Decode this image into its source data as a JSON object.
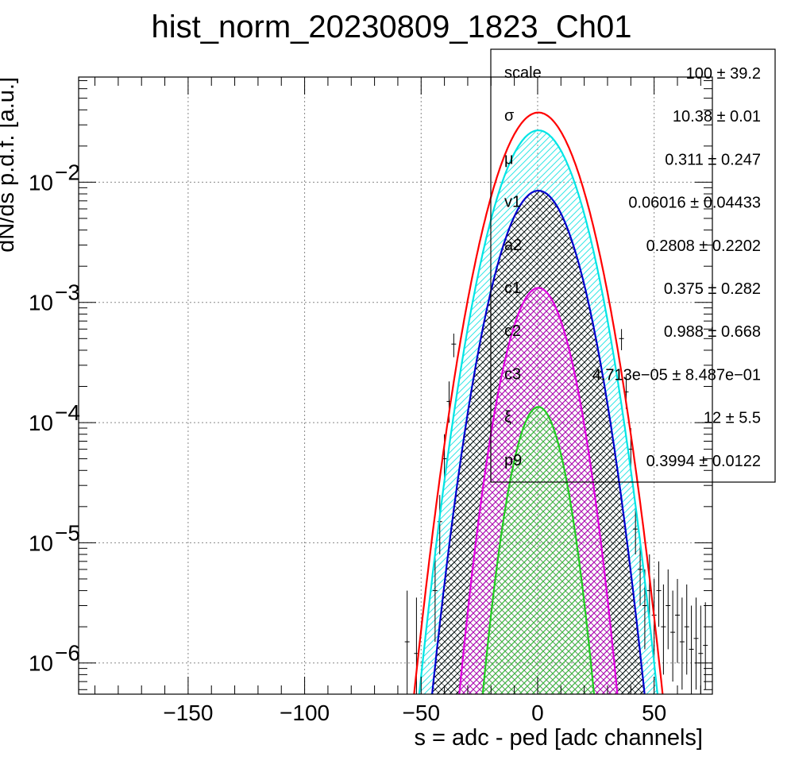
{
  "chart_data": {
    "type": "line",
    "title": "hist_norm_20230809_1823_Ch01",
    "xlabel": "s = adc - ped [adc channels]",
    "ylabel": "dN/ds p.d.f. [a.u.]",
    "xlim": [
      -197,
      75
    ],
    "ylim": [
      5.5e-07,
      0.075
    ],
    "yscale": "log",
    "grid": true,
    "xticks": [
      {
        "v": -150,
        "label": "−150"
      },
      {
        "v": -100,
        "label": "−100"
      },
      {
        "v": -50,
        "label": "−50"
      },
      {
        "v": 0,
        "label": "0"
      },
      {
        "v": 50,
        "label": "50"
      }
    ],
    "yticks": [
      {
        "v": 1e-06,
        "base": "10",
        "exp": "−6"
      },
      {
        "v": 1e-05,
        "base": "10",
        "exp": "−5"
      },
      {
        "v": 0.0001,
        "base": "10",
        "exp": "−4"
      },
      {
        "v": 0.001,
        "base": "10",
        "exp": "−3"
      },
      {
        "v": 0.01,
        "base": "10",
        "exp": "−2"
      }
    ],
    "series": [
      {
        "color": "#ff0000",
        "fill": "none",
        "peak": 0.038,
        "mu": 0.311,
        "sigma": 11.3
      },
      {
        "color": "#00e5e5",
        "fill": "#33e6e6",
        "peak": 0.027,
        "mu": 0.311,
        "sigma": 11.0
      },
      {
        "color": "#0000cc",
        "fill": "#000000",
        "peak": 0.0085,
        "mu": 0.311,
        "sigma": 10.38
      },
      {
        "color": "#e000e0",
        "fill": "#cc00cc",
        "peak": 0.00132,
        "mu": 0.311,
        "sigma": 8.6
      },
      {
        "color": "#22cc22",
        "fill": "#33dd33",
        "peak": 0.000135,
        "mu": 0.311,
        "sigma": 7.2
      }
    ],
    "data_points": [
      {
        "x": -56,
        "y": 1.5e-06,
        "lo": 4e-07,
        "hi": 4e-06
      },
      {
        "x": -52,
        "y": 1.2e-06,
        "lo": 3e-07,
        "hi": 3.5e-06
      },
      {
        "x": -44,
        "y": 4e-06,
        "lo": 1.5e-06,
        "hi": 9e-06
      },
      {
        "x": -42,
        "y": 1.5e-05,
        "lo": 8e-06,
        "hi": 2.5e-05
      },
      {
        "x": -40,
        "y": 5e-05,
        "lo": 3e-05,
        "hi": 8e-05
      },
      {
        "x": -38,
        "y": 0.00015,
        "lo": 0.0001,
        "hi": 0.00022
      },
      {
        "x": -36,
        "y": 0.00045,
        "lo": 0.00035,
        "hi": 0.00055
      },
      {
        "x": 36,
        "y": 0.0005,
        "lo": 0.0004,
        "hi": 0.0006
      },
      {
        "x": 38,
        "y": 0.00018,
        "lo": 0.00013,
        "hi": 0.00025
      },
      {
        "x": 40,
        "y": 6e-05,
        "lo": 4e-05,
        "hi": 9e-05
      },
      {
        "x": 42,
        "y": 1.3e-05,
        "lo": 8e-06,
        "hi": 2e-05
      },
      {
        "x": 44,
        "y": 6e-06,
        "lo": 3e-06,
        "hi": 1.1e-05
      },
      {
        "x": 46,
        "y": 3e-06,
        "lo": 1.3e-06,
        "hi": 6e-06
      },
      {
        "x": 48,
        "y": 4e-06,
        "lo": 2e-06,
        "hi": 8e-06
      },
      {
        "x": 50,
        "y": 2.5e-06,
        "lo": 1e-06,
        "hi": 5e-06
      },
      {
        "x": 52,
        "y": 4e-06,
        "lo": 2e-06,
        "hi": 7e-06
      },
      {
        "x": 54,
        "y": 2e-06,
        "lo": 8e-07,
        "hi": 4.5e-06
      },
      {
        "x": 56,
        "y": 3e-06,
        "lo": 1.3e-06,
        "hi": 6e-06
      },
      {
        "x": 58,
        "y": 1.8e-06,
        "lo": 7e-07,
        "hi": 4e-06
      },
      {
        "x": 60,
        "y": 2.5e-06,
        "lo": 1e-06,
        "hi": 5e-06
      },
      {
        "x": 62,
        "y": 1.5e-06,
        "lo": 6e-07,
        "hi": 3.5e-06
      },
      {
        "x": 64,
        "y": 2e-06,
        "lo": 8e-07,
        "hi": 4.5e-06
      },
      {
        "x": 66,
        "y": 1.3e-06,
        "lo": 5e-07,
        "hi": 3e-06
      },
      {
        "x": 68,
        "y": 1.6e-06,
        "lo": 6e-07,
        "hi": 3.5e-06
      },
      {
        "x": 70,
        "y": 1.2e-06,
        "lo": 5e-07,
        "hi": 3e-06
      },
      {
        "x": 72,
        "y": 1.4e-06,
        "lo": 6e-07,
        "hi": 3.2e-06
      }
    ],
    "stats": [
      {
        "name": "scale",
        "value": "100 ± 39.2"
      },
      {
        "name": "σ",
        "value": "10.38 ± 0.01"
      },
      {
        "name": "μ",
        "value": "0.311 ± 0.247"
      },
      {
        "name": "v1",
        "value": "0.06016 ± 0.04433"
      },
      {
        "name": "a2",
        "value": "0.2808 ± 0.2202"
      },
      {
        "name": "c1",
        "value": "0.375 ± 0.282"
      },
      {
        "name": "c2",
        "value": "0.988 ± 0.668"
      },
      {
        "name": "c3",
        "value": "4.713e−05 ± 8.487e−01"
      },
      {
        "name": "ξ",
        "value": "12 ± 5.5"
      },
      {
        "name": "p9",
        "value": "0.3994 ± 0.0122"
      }
    ]
  }
}
